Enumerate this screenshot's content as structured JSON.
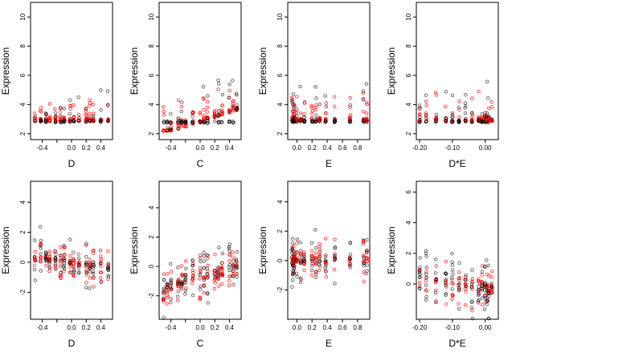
{
  "colors": {
    "black": "#000000",
    "red": "#ff0000"
  },
  "chart_data": [
    {
      "type": "scatter",
      "xlabel": "D",
      "ylabel": "Expression",
      "xlim": [
        -0.56,
        0.56
      ],
      "ylim": [
        1.6,
        11.0
      ],
      "xticks": [
        -0.4,
        -0.2,
        0.0,
        0.2,
        0.4
      ],
      "xticklabels": [
        "-0.4",
        "",
        "0.0",
        "0.2",
        "0.4"
      ],
      "yticks": [
        2,
        4,
        6,
        8,
        10
      ],
      "yticklabels": [
        "2",
        "4",
        "6",
        "8",
        "10"
      ],
      "groups": [
        {
          "xs": [
            -0.5,
            -0.42,
            -0.35,
            -0.3,
            -0.22,
            -0.15,
            -0.1,
            -0.02,
            0.03,
            0.1,
            0.2,
            0.25,
            0.3,
            0.4,
            0.5
          ],
          "y_base": 2.85,
          "y_spread": 2.5,
          "baseline": true
        }
      ]
    },
    {
      "type": "scatter",
      "xlabel": "C",
      "ylabel": "Expression",
      "xlim": [
        -0.56,
        0.56
      ],
      "ylim": [
        1.6,
        11.0
      ],
      "xticks": [
        -0.4,
        -0.2,
        0.0,
        0.2,
        0.4
      ],
      "xticklabels": [
        "-0.4",
        "",
        "0.0",
        "0.2",
        "0.4"
      ],
      "yticks": [
        2,
        4,
        6,
        8,
        10
      ],
      "yticklabels": [
        "2",
        "4",
        "6",
        "8",
        "10"
      ],
      "groups": [
        {
          "xs": [
            -0.5,
            -0.45,
            -0.4,
            -0.3,
            -0.25,
            -0.2,
            -0.1,
            0.0,
            0.05,
            0.1,
            0.2,
            0.25,
            0.3,
            0.4,
            0.45,
            0.5
          ],
          "y_base": 2.8,
          "y_spread": 3.0,
          "baseline": true,
          "trend": 1.8
        }
      ]
    },
    {
      "type": "scatter",
      "xlabel": "E",
      "ylabel": "Expression",
      "xlim": [
        -0.12,
        0.96
      ],
      "ylim": [
        1.6,
        11.0
      ],
      "xticks": [
        0.0,
        0.2,
        0.4,
        0.6,
        0.8
      ],
      "xticklabels": [
        "0.0",
        "0.2",
        "0.4",
        "0.6",
        "0.8"
      ],
      "yticks": [
        2,
        4,
        6,
        8,
        10
      ],
      "yticklabels": [
        "2",
        "4",
        "6",
        "8",
        "10"
      ],
      "groups": [
        {
          "xs": [
            -0.06,
            -0.05,
            -0.04,
            -0.03,
            0.0,
            0.05,
            0.1,
            0.2,
            0.25,
            0.3,
            0.38,
            0.5,
            0.7,
            0.88,
            0.92
          ],
          "y_base": 2.85,
          "y_spread": 2.8,
          "baseline": true
        }
      ]
    },
    {
      "type": "scatter",
      "xlabel": "D*E",
      "ylabel": "Expression",
      "xlim": [
        -0.21,
        0.04
      ],
      "ylim": [
        1.6,
        11.0
      ],
      "xticks": [
        -0.2,
        -0.1,
        0.0
      ],
      "xticklabels": [
        "-0.20",
        "-0.10",
        "0.00"
      ],
      "yticks": [
        2,
        4,
        6,
        8,
        10
      ],
      "yticklabels": [
        "2",
        "4",
        "6",
        "8",
        "10"
      ],
      "groups": [
        {
          "xs": [
            -0.2,
            -0.18,
            -0.15,
            -0.12,
            -0.1,
            -0.08,
            -0.06,
            -0.04,
            -0.02,
            -0.01,
            0.0,
            0.005,
            0.01,
            0.02
          ],
          "y_base": 2.85,
          "y_spread": 2.8,
          "baseline": true
        }
      ]
    },
    {
      "type": "scatter",
      "xlabel": "D",
      "ylabel": "Expression",
      "xlim": [
        -0.56,
        0.56
      ],
      "ylim": [
        -3.8,
        5.4
      ],
      "xticks": [
        -0.4,
        -0.2,
        0.0,
        0.2,
        0.4
      ],
      "xticklabels": [
        "-0.4",
        "",
        "0.0",
        "0.2",
        "0.4"
      ],
      "yticks": [
        -2,
        0,
        2,
        4
      ],
      "yticklabels": [
        "-2",
        "0",
        "2",
        "4"
      ],
      "groups": [
        {
          "xs": [
            -0.5,
            -0.42,
            -0.35,
            -0.3,
            -0.22,
            -0.15,
            -0.1,
            -0.02,
            0.03,
            0.1,
            0.2,
            0.25,
            0.3,
            0.4,
            0.5
          ],
          "y_base": 0.0,
          "y_spread": 2.0,
          "baseline": false,
          "trend": -0.8
        }
      ]
    },
    {
      "type": "scatter",
      "xlabel": "C",
      "ylabel": "Expression",
      "xlim": [
        -0.56,
        0.56
      ],
      "ylim": [
        -3.6,
        5.8
      ],
      "xticks": [
        -0.4,
        -0.2,
        0.0,
        0.2,
        0.4
      ],
      "xticklabels": [
        "-0.4",
        "",
        "0.0",
        "0.2",
        "0.4"
      ],
      "yticks": [
        -2,
        0,
        2,
        4
      ],
      "yticklabels": [
        "-2",
        "0",
        "2",
        "4"
      ],
      "groups": [
        {
          "xs": [
            -0.5,
            -0.45,
            -0.4,
            -0.3,
            -0.25,
            -0.2,
            -0.1,
            0.0,
            0.05,
            0.1,
            0.2,
            0.25,
            0.3,
            0.4,
            0.45,
            0.5
          ],
          "y_base": -0.8,
          "y_spread": 2.2,
          "baseline": false,
          "trend": 1.6
        }
      ]
    },
    {
      "type": "scatter",
      "xlabel": "E",
      "ylabel": "Expression",
      "xlim": [
        -0.12,
        0.96
      ],
      "ylim": [
        -4.0,
        5.4
      ],
      "xticks": [
        0.0,
        0.2,
        0.4,
        0.6,
        0.8
      ],
      "xticklabels": [
        "0.0",
        "0.2",
        "0.4",
        "0.6",
        "0.8"
      ],
      "yticks": [
        -2,
        0,
        2,
        4
      ],
      "yticklabels": [
        "-2",
        "0",
        "2",
        "4"
      ],
      "groups": [
        {
          "xs": [
            -0.06,
            -0.05,
            -0.04,
            -0.03,
            0.0,
            0.05,
            0.1,
            0.2,
            0.25,
            0.3,
            0.38,
            0.5,
            0.7,
            0.88,
            0.92
          ],
          "y_base": 0.0,
          "y_spread": 2.0,
          "baseline": false
        }
      ]
    },
    {
      "type": "scatter",
      "xlabel": "D*E",
      "ylabel": "Expression",
      "xlim": [
        -0.21,
        0.04
      ],
      "ylim": [
        -2.3,
        6.7
      ],
      "xticks": [
        -0.2,
        -0.1,
        0.0
      ],
      "xticklabels": [
        "-0.20",
        "-0.10",
        "0.00"
      ],
      "yticks": [
        0,
        2,
        4,
        6
      ],
      "yticklabels": [
        "0",
        "2",
        "4",
        "6"
      ],
      "groups": [
        {
          "xs": [
            -0.2,
            -0.18,
            -0.15,
            -0.12,
            -0.1,
            -0.08,
            -0.06,
            -0.04,
            -0.02,
            -0.01,
            0.0,
            0.005,
            0.01,
            0.02
          ],
          "y_base": 0.0,
          "y_spread": 2.2,
          "baseline": false,
          "trend": -1.2
        }
      ]
    }
  ]
}
